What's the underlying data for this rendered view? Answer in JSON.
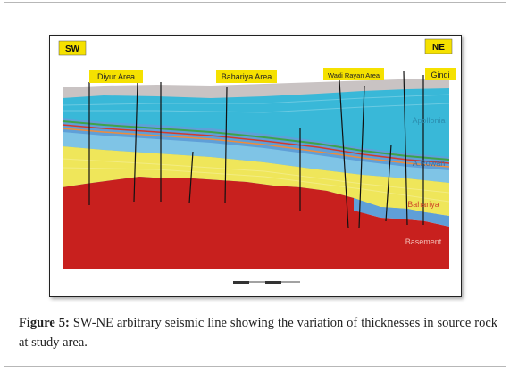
{
  "figure": {
    "direction_left": "SW",
    "direction_right": "NE",
    "areas": [
      "Diyur Area",
      "Bahariya Area",
      "Wadi Rayan Area",
      "Gindi"
    ],
    "formations": [
      "Apollonia",
      "A.Rowan",
      "Bahariya",
      "Basement"
    ],
    "colors": {
      "upper_unit": "#c9c3c3",
      "cyan_unit": "#39b8d8",
      "blue_unit": "#5f9fd8",
      "yellow_unit": "#efe65a",
      "basement": "#c8201e",
      "label_box": "#f5e100"
    }
  },
  "caption": {
    "label": "Figure 5:",
    "text": "SW-NE arbitrary seismic line showing the variation of thicknesses in source rock at study area."
  }
}
